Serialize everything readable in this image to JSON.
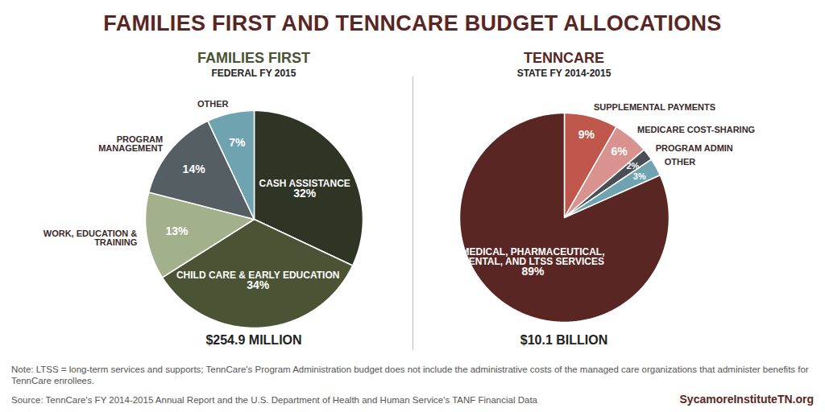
{
  "title": "FAMILIES FIRST AND TENNCARE BUDGET ALLOCATIONS",
  "chart_data": [
    {
      "type": "pie",
      "title": "FAMILIES FIRST",
      "subtitle": "FEDERAL FY 2015",
      "caption": "$254.9 MILLION",
      "categories": [
        "CASH ASSISTANCE",
        "CHILD CARE & EARLY EDUCATION",
        "WORK, EDUCATION & TRAINING",
        "PROGRAM MANAGEMENT",
        "OTHER"
      ],
      "values": [
        32,
        34,
        13,
        14,
        7
      ],
      "value_labels": [
        "32%",
        "34%",
        "13%",
        "14%",
        "7%"
      ],
      "colors": [
        "#2f3524",
        "#4a5434",
        "#a3b08c",
        "#555e63",
        "#6fa3b0"
      ],
      "color": "#4a5434",
      "data_labels": true
    },
    {
      "type": "pie",
      "title": "TENNCARE",
      "subtitle": "STATE FY 2014-2015",
      "caption": "$10.1 BILLION",
      "categories": [
        "SUPPLEMENTAL PAYMENTS",
        "MEDICARE COST-SHARING",
        "PROGRAM ADMIN",
        "OTHER",
        "MEDICAL, PHARMACEUTICAL, DENTAL, AND LTSS SERVICES"
      ],
      "values": [
        9,
        6,
        2,
        3,
        89
      ],
      "value_labels": [
        "9%",
        "6%",
        "2%",
        "3%",
        "89%"
      ],
      "colors": [
        "#c0574c",
        "#d9928d",
        "#4a4f55",
        "#6fa3b0",
        "#5a2623"
      ],
      "color": "#5a2623",
      "data_labels": true
    }
  ],
  "note": "Note: LTSS = long-term services and supports; TennCare's Program Administration budget does not include the administrative costs of the managed care organizations that administer benefits for TennCare enrollees.",
  "source": "Source: TennCare's FY 2014-2015 Annual Report and the U.S. Department of Health and Human Service's TANF Financial Data",
  "credit": "SycamoreInstituteTN.org"
}
